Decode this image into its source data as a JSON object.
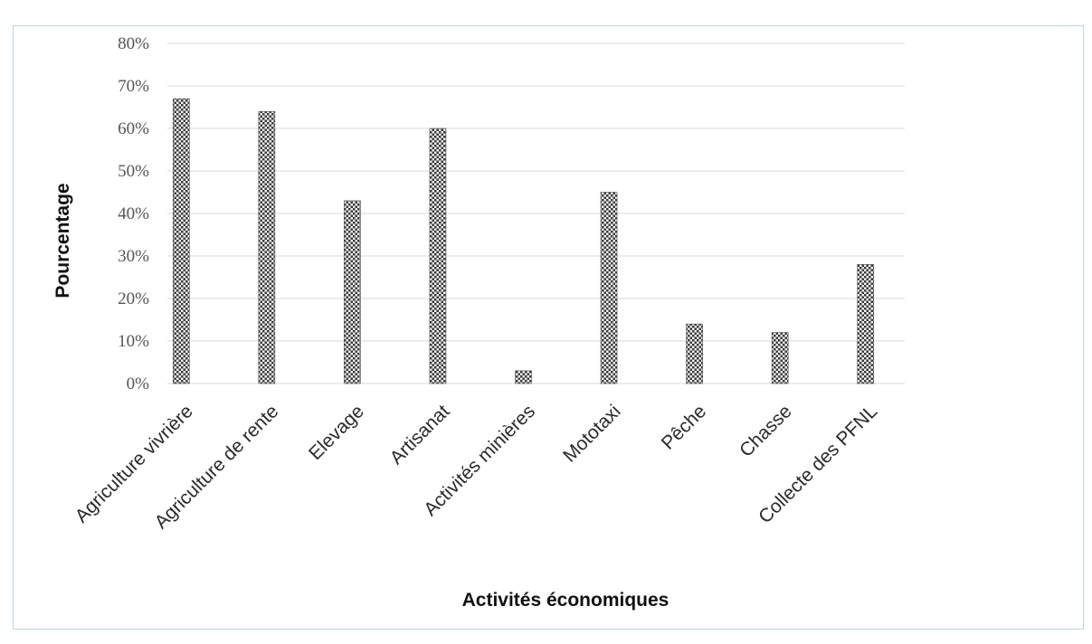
{
  "chart_data": {
    "type": "bar",
    "title": "",
    "xlabel": "Activités économiques",
    "ylabel": "Pourcentage",
    "categories": [
      "Agriculture vivrière",
      "Agriculture de rente",
      "Elevage",
      "Artisanat",
      "Activités minières",
      "Mototaxi",
      "Pêche",
      "Chasse",
      "Collecte des PFNL"
    ],
    "values": [
      67,
      64,
      43,
      60,
      3,
      45,
      14,
      12,
      28
    ],
    "ylim": [
      0,
      80
    ],
    "yticks": [
      "0%",
      "10%",
      "20%",
      "30%",
      "40%",
      "50%",
      "60%",
      "70%",
      "80%"
    ],
    "grid": true,
    "bar_color": "#4a4a4a"
  }
}
